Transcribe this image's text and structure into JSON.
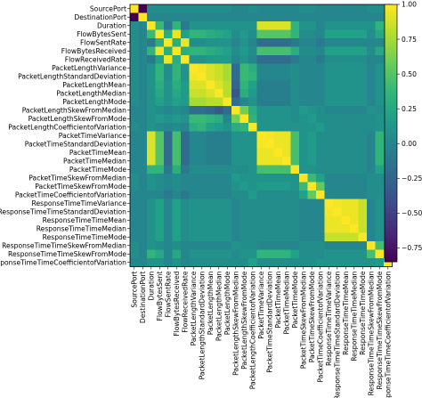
{
  "chart_data": {
    "type": "heatmap",
    "title": "",
    "xlabel": "",
    "ylabel": "",
    "labels": [
      "SourcePort",
      "DestinationPort",
      "Duration",
      "FlowBytesSent",
      "FlowSentRate",
      "FlowBytesReceived",
      "FlowReceivedRate",
      "PacketLengthVariance",
      "PacketLengthStandardDeviation",
      "PacketLengthMean",
      "PacketLengthMedian",
      "PacketLengthMode",
      "PacketLengthSkewFromMedian",
      "PacketLengthSkewFromMode",
      "PacketLengthCoefficientofVariation",
      "PacketTimeVariance",
      "PacketTimeStandardDeviation",
      "PacketTimeMean",
      "PacketTimeMedian",
      "PacketTimeMode",
      "PacketTimeSkewFromMedian",
      "PacketTimeSkewFromMode",
      "PacketTimeCoefficientofVariation",
      "ResponseTimeTimeVariance",
      "ResponseTimeTimeStandardDeviation",
      "ResponseTimeTimeMean",
      "ResponseTimeTimeMedian",
      "ResponseTimeTimeMode",
      "ResponseTimeTimeSkewFromMedian",
      "ResponseTimeTimeSkewFromMode",
      "ResponseTimeTimeCoefficientofVariation"
    ],
    "zlim": [
      -0.85,
      1.0
    ],
    "colorbar_ticks": [
      "1.00",
      "0.75",
      "0.50",
      "0.25",
      "0.00",
      "−0.25",
      "−0.50",
      "−0.75"
    ],
    "colorbar_tick_values": [
      1.0,
      0.75,
      0.5,
      0.25,
      0.0,
      -0.25,
      -0.5,
      -0.75
    ],
    "colormap": "viridis",
    "values": [
      [
        1.0,
        -0.85,
        0.05,
        0.05,
        0.05,
        0.05,
        0.05,
        0.05,
        0.05,
        0.05,
        0.05,
        0.05,
        0.0,
        0.0,
        0.05,
        0.0,
        0.0,
        0.0,
        0.0,
        0.0,
        0.05,
        0.05,
        0.0,
        0.0,
        0.0,
        0.0,
        0.0,
        0.0,
        0.05,
        0.05,
        0.0
      ],
      [
        -0.85,
        1.0,
        0.0,
        0.0,
        0.0,
        0.0,
        0.0,
        0.0,
        0.0,
        0.0,
        0.0,
        0.0,
        0.0,
        0.0,
        0.0,
        0.0,
        0.0,
        0.0,
        0.0,
        0.0,
        0.0,
        0.0,
        0.0,
        0.0,
        0.0,
        0.0,
        0.0,
        0.0,
        0.0,
        0.0,
        0.0
      ],
      [
        0.05,
        0.0,
        1.0,
        0.4,
        -0.1,
        0.35,
        -0.1,
        0.1,
        0.1,
        0.1,
        0.1,
        0.1,
        0.1,
        0.1,
        0.1,
        0.9,
        0.9,
        0.9,
        0.9,
        0.35,
        0.1,
        0.1,
        0.0,
        0.1,
        0.1,
        0.1,
        0.1,
        0.1,
        0.1,
        0.35,
        0.1
      ],
      [
        0.05,
        0.0,
        0.4,
        1.0,
        0.3,
        0.95,
        0.2,
        0.35,
        0.35,
        0.3,
        0.25,
        0.2,
        0.05,
        0.15,
        0.05,
        0.5,
        0.5,
        0.5,
        0.5,
        0.35,
        0.05,
        0.05,
        0.0,
        0.2,
        0.2,
        0.2,
        0.2,
        0.2,
        0.05,
        0.25,
        0.1
      ],
      [
        0.05,
        0.0,
        -0.1,
        0.3,
        1.0,
        0.3,
        0.95,
        0.05,
        0.05,
        0.1,
        0.1,
        0.1,
        0.0,
        0.1,
        0.0,
        -0.2,
        -0.2,
        -0.2,
        -0.2,
        -0.1,
        0.0,
        0.0,
        -0.1,
        0.0,
        0.0,
        0.0,
        0.0,
        0.0,
        0.0,
        0.0,
        0.0
      ],
      [
        0.05,
        0.0,
        0.35,
        0.95,
        0.3,
        1.0,
        0.3,
        0.35,
        0.35,
        0.3,
        0.25,
        0.2,
        0.05,
        0.15,
        0.05,
        0.45,
        0.45,
        0.45,
        0.45,
        0.3,
        0.05,
        0.05,
        0.0,
        0.2,
        0.2,
        0.2,
        0.2,
        0.2,
        0.05,
        0.25,
        0.1
      ],
      [
        0.05,
        0.0,
        -0.1,
        0.2,
        0.95,
        0.3,
        1.0,
        0.1,
        0.1,
        0.15,
        0.15,
        0.15,
        0.0,
        0.1,
        0.0,
        -0.2,
        -0.2,
        -0.2,
        -0.2,
        -0.1,
        0.0,
        0.0,
        -0.1,
        0.05,
        0.05,
        0.05,
        0.05,
        0.05,
        0.0,
        0.0,
        0.0
      ],
      [
        0.05,
        0.0,
        0.1,
        0.35,
        0.05,
        0.35,
        0.1,
        1.0,
        0.97,
        0.9,
        0.85,
        0.75,
        -0.2,
        0.4,
        0.3,
        0.0,
        0.0,
        0.0,
        0.0,
        0.05,
        0.0,
        0.0,
        0.0,
        0.1,
        0.1,
        0.1,
        0.1,
        0.1,
        0.0,
        0.1,
        0.05
      ],
      [
        0.05,
        0.0,
        0.1,
        0.35,
        0.05,
        0.35,
        0.1,
        0.97,
        1.0,
        0.9,
        0.85,
        0.75,
        -0.2,
        0.4,
        0.35,
        0.0,
        0.0,
        0.0,
        0.0,
        0.05,
        0.0,
        0.0,
        0.0,
        0.1,
        0.1,
        0.1,
        0.1,
        0.1,
        0.0,
        0.1,
        0.05
      ],
      [
        0.05,
        0.0,
        0.1,
        0.3,
        0.1,
        0.3,
        0.15,
        0.9,
        0.9,
        1.0,
        0.9,
        0.8,
        -0.25,
        0.35,
        0.2,
        -0.05,
        -0.05,
        -0.05,
        -0.05,
        0.05,
        0.0,
        0.0,
        0.0,
        0.1,
        0.1,
        0.1,
        0.1,
        0.1,
        0.0,
        0.1,
        0.05
      ],
      [
        0.05,
        0.0,
        0.1,
        0.25,
        0.1,
        0.25,
        0.15,
        0.85,
        0.85,
        0.9,
        1.0,
        0.8,
        -0.35,
        0.3,
        0.15,
        -0.05,
        -0.05,
        -0.05,
        -0.05,
        0.05,
        0.0,
        0.0,
        0.0,
        0.1,
        0.1,
        0.1,
        0.1,
        0.1,
        0.0,
        0.1,
        0.05
      ],
      [
        0.05,
        0.0,
        0.1,
        0.2,
        0.1,
        0.2,
        0.15,
        0.75,
        0.75,
        0.8,
        0.8,
        1.0,
        -0.2,
        0.0,
        0.1,
        -0.05,
        -0.05,
        -0.05,
        -0.05,
        0.05,
        0.0,
        0.0,
        0.0,
        0.1,
        0.1,
        0.1,
        0.1,
        0.1,
        0.0,
        0.1,
        0.05
      ],
      [
        0.0,
        0.0,
        0.1,
        0.05,
        0.0,
        0.05,
        0.0,
        -0.2,
        -0.2,
        -0.25,
        -0.35,
        -0.2,
        1.0,
        0.6,
        0.3,
        0.1,
        0.1,
        0.1,
        0.1,
        0.05,
        0.15,
        0.1,
        0.05,
        0.0,
        0.0,
        0.0,
        0.0,
        0.0,
        0.1,
        0.05,
        0.05
      ],
      [
        0.0,
        0.0,
        0.1,
        0.15,
        0.1,
        0.15,
        0.1,
        0.4,
        0.4,
        0.35,
        0.3,
        0.0,
        0.6,
        1.0,
        0.35,
        0.1,
        0.1,
        0.1,
        0.1,
        0.05,
        0.1,
        0.15,
        0.05,
        0.05,
        0.05,
        0.05,
        0.05,
        0.05,
        0.05,
        0.1,
        0.05
      ],
      [
        0.05,
        0.0,
        0.1,
        0.05,
        0.0,
        0.05,
        0.0,
        0.3,
        0.35,
        0.2,
        0.15,
        0.1,
        0.3,
        0.35,
        1.0,
        0.1,
        0.1,
        0.1,
        0.1,
        0.1,
        0.1,
        0.1,
        0.15,
        0.05,
        0.05,
        0.05,
        0.05,
        0.05,
        0.05,
        0.1,
        0.2
      ],
      [
        0.0,
        0.0,
        0.9,
        0.5,
        -0.2,
        0.45,
        -0.2,
        0.0,
        0.0,
        -0.05,
        -0.05,
        -0.05,
        0.1,
        0.1,
        0.1,
        1.0,
        0.98,
        0.95,
        0.95,
        0.45,
        0.1,
        0.15,
        0.05,
        0.05,
        0.05,
        0.05,
        0.05,
        0.05,
        0.0,
        0.35,
        0.05
      ],
      [
        0.0,
        0.0,
        0.9,
        0.5,
        -0.2,
        0.45,
        -0.2,
        0.0,
        0.0,
        -0.05,
        -0.05,
        -0.05,
        0.1,
        0.1,
        0.1,
        0.98,
        1.0,
        0.95,
        0.95,
        0.45,
        0.1,
        0.15,
        0.05,
        0.05,
        0.05,
        0.05,
        0.05,
        0.05,
        0.0,
        0.35,
        0.05
      ],
      [
        0.0,
        0.0,
        0.9,
        0.5,
        -0.2,
        0.45,
        -0.2,
        0.0,
        0.0,
        -0.05,
        -0.05,
        -0.05,
        0.1,
        0.1,
        0.1,
        0.95,
        0.95,
        1.0,
        0.95,
        0.45,
        0.1,
        0.15,
        0.05,
        0.05,
        0.05,
        0.05,
        0.05,
        0.05,
        0.0,
        0.35,
        0.05
      ],
      [
        0.0,
        0.0,
        0.9,
        0.5,
        -0.2,
        0.45,
        -0.2,
        0.0,
        0.0,
        -0.05,
        -0.05,
        -0.05,
        0.1,
        0.1,
        0.1,
        0.95,
        0.95,
        0.95,
        1.0,
        0.45,
        0.1,
        0.15,
        0.05,
        0.05,
        0.05,
        0.05,
        0.05,
        0.05,
        0.0,
        0.35,
        0.05
      ],
      [
        0.0,
        0.0,
        0.35,
        0.35,
        -0.1,
        0.3,
        -0.1,
        0.05,
        0.05,
        0.05,
        0.05,
        0.05,
        0.05,
        0.05,
        0.1,
        0.45,
        0.45,
        0.45,
        0.45,
        1.0,
        0.1,
        0.1,
        0.05,
        0.05,
        0.05,
        0.05,
        0.05,
        0.05,
        0.0,
        0.2,
        0.05
      ],
      [
        0.05,
        0.0,
        0.1,
        0.05,
        0.0,
        0.05,
        0.0,
        0.0,
        0.0,
        0.0,
        0.0,
        0.0,
        0.15,
        0.1,
        0.1,
        0.1,
        0.1,
        0.1,
        0.1,
        0.1,
        1.0,
        0.4,
        0.2,
        0.0,
        0.0,
        0.0,
        0.0,
        0.0,
        0.05,
        0.05,
        0.05
      ],
      [
        0.05,
        0.0,
        0.1,
        0.05,
        0.0,
        0.05,
        0.0,
        0.0,
        0.0,
        0.0,
        0.0,
        0.0,
        0.1,
        0.15,
        0.1,
        0.15,
        0.15,
        0.15,
        0.15,
        0.1,
        0.4,
        1.0,
        0.55,
        0.0,
        0.0,
        0.0,
        0.0,
        0.0,
        0.05,
        0.05,
        0.05
      ],
      [
        0.0,
        0.0,
        0.0,
        0.0,
        -0.1,
        0.0,
        -0.1,
        0.0,
        0.0,
        0.0,
        0.0,
        0.0,
        0.05,
        0.05,
        0.15,
        0.05,
        0.05,
        0.05,
        0.05,
        0.05,
        0.2,
        0.55,
        1.0,
        0.0,
        0.0,
        0.0,
        0.0,
        0.0,
        0.05,
        0.05,
        0.1
      ],
      [
        0.0,
        0.0,
        0.1,
        0.2,
        0.0,
        0.2,
        0.05,
        0.1,
        0.1,
        0.1,
        0.1,
        0.1,
        0.0,
        0.05,
        0.05,
        0.05,
        0.05,
        0.05,
        0.05,
        0.05,
        0.0,
        0.0,
        0.0,
        1.0,
        0.97,
        0.95,
        0.95,
        0.85,
        0.0,
        0.1,
        0.1
      ],
      [
        0.0,
        0.0,
        0.1,
        0.2,
        0.0,
        0.2,
        0.05,
        0.1,
        0.1,
        0.1,
        0.1,
        0.1,
        0.0,
        0.05,
        0.05,
        0.05,
        0.05,
        0.05,
        0.05,
        0.05,
        0.0,
        0.0,
        0.0,
        0.97,
        1.0,
        0.95,
        0.95,
        0.85,
        0.0,
        0.1,
        0.1
      ],
      [
        0.0,
        0.0,
        0.1,
        0.2,
        0.0,
        0.2,
        0.05,
        0.1,
        0.1,
        0.1,
        0.1,
        0.1,
        0.0,
        0.05,
        0.05,
        0.05,
        0.05,
        0.05,
        0.05,
        0.05,
        0.0,
        0.0,
        0.0,
        0.95,
        0.95,
        1.0,
        0.95,
        0.85,
        0.0,
        0.1,
        0.1
      ],
      [
        0.0,
        0.0,
        0.1,
        0.2,
        0.0,
        0.2,
        0.05,
        0.1,
        0.1,
        0.1,
        0.1,
        0.1,
        0.0,
        0.05,
        0.05,
        0.05,
        0.05,
        0.05,
        0.05,
        0.05,
        0.0,
        0.0,
        0.0,
        0.95,
        0.95,
        0.95,
        1.0,
        0.85,
        0.0,
        0.1,
        0.1
      ],
      [
        0.0,
        0.0,
        0.1,
        0.2,
        0.0,
        0.2,
        0.05,
        0.1,
        0.1,
        0.1,
        0.1,
        0.1,
        0.0,
        0.05,
        0.05,
        0.05,
        0.05,
        0.05,
        0.05,
        0.05,
        0.0,
        0.0,
        0.0,
        0.85,
        0.85,
        0.85,
        0.85,
        1.0,
        0.0,
        0.1,
        0.1
      ],
      [
        0.05,
        0.0,
        0.1,
        0.05,
        0.0,
        0.05,
        0.0,
        0.0,
        0.0,
        0.0,
        0.0,
        0.0,
        0.1,
        0.05,
        0.05,
        0.0,
        0.0,
        0.0,
        0.0,
        0.0,
        0.05,
        0.05,
        0.05,
        0.0,
        0.0,
        0.0,
        0.0,
        0.0,
        1.0,
        0.45,
        0.1
      ],
      [
        0.05,
        0.0,
        0.35,
        0.25,
        0.0,
        0.25,
        0.0,
        0.1,
        0.1,
        0.1,
        0.1,
        0.1,
        0.05,
        0.1,
        0.1,
        0.35,
        0.35,
        0.35,
        0.35,
        0.2,
        0.05,
        0.05,
        0.05,
        0.1,
        0.1,
        0.1,
        0.1,
        0.1,
        0.45,
        1.0,
        0.15
      ],
      [
        0.0,
        0.0,
        0.1,
        0.1,
        0.0,
        0.1,
        0.0,
        0.05,
        0.05,
        0.05,
        0.05,
        0.05,
        0.05,
        0.05,
        0.2,
        0.05,
        0.05,
        0.05,
        0.05,
        0.05,
        0.05,
        0.05,
        0.1,
        0.1,
        0.1,
        0.1,
        0.1,
        0.1,
        0.1,
        0.15,
        1.0
      ]
    ]
  }
}
